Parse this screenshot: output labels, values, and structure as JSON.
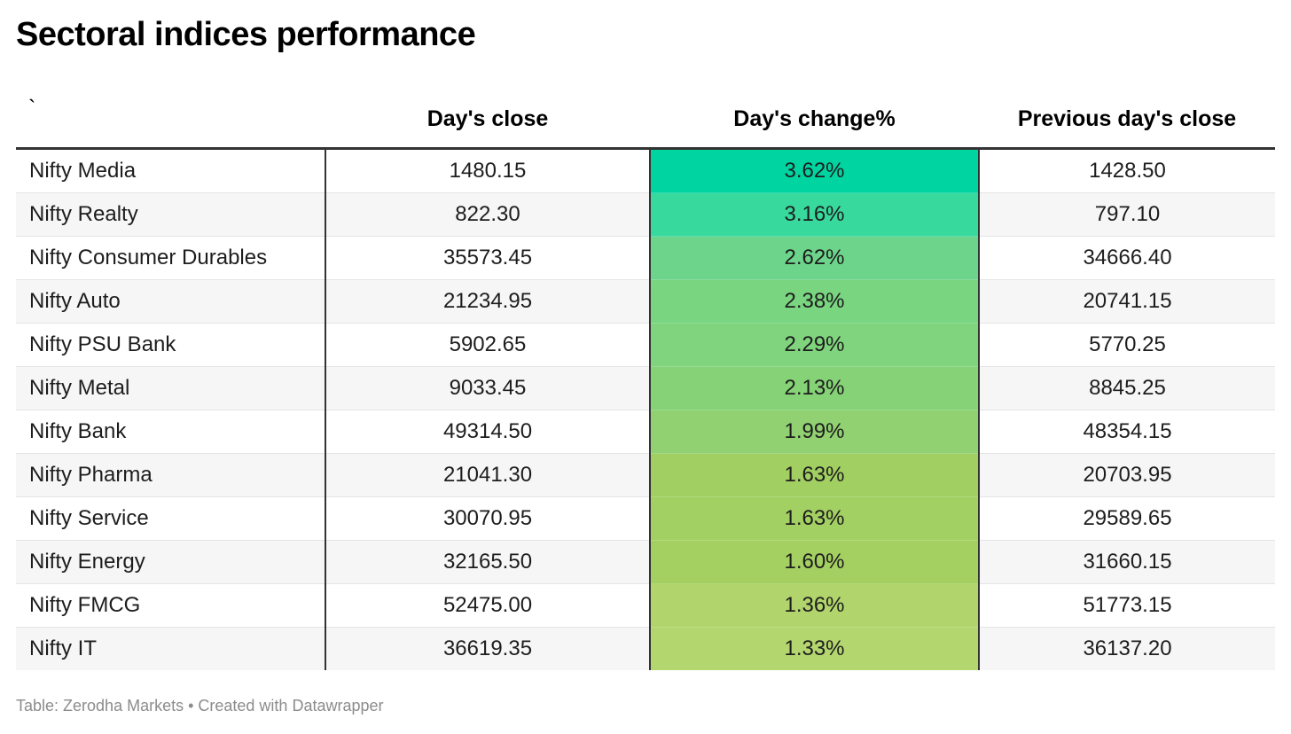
{
  "title": "Sectoral indices performance",
  "footer": "Table: Zerodha Markets • Created with Datawrapper",
  "chart_data": {
    "type": "table",
    "title": "Sectoral indices performance",
    "columns": [
      "`",
      "Day's close",
      "Day's change%",
      "Previous day's close"
    ],
    "rows": [
      {
        "name": "Nifty Media",
        "close": "1480.15",
        "change": "3.62%",
        "prev": "1428.50",
        "change_value": 3.62,
        "color": "#00d5a2"
      },
      {
        "name": "Nifty Realty",
        "close": "822.30",
        "change": "3.16%",
        "prev": "797.10",
        "change_value": 3.16,
        "color": "#38d99d"
      },
      {
        "name": "Nifty Consumer Durables",
        "close": "35573.45",
        "change": "2.62%",
        "prev": "34666.40",
        "change_value": 2.62,
        "color": "#6dd58b"
      },
      {
        "name": "Nifty Auto",
        "close": "21234.95",
        "change": "2.38%",
        "prev": "20741.15",
        "change_value": 2.38,
        "color": "#7ad581"
      },
      {
        "name": "Nifty PSU Bank",
        "close": "5902.65",
        "change": "2.29%",
        "prev": "5770.25",
        "change_value": 2.29,
        "color": "#7fd47d"
      },
      {
        "name": "Nifty Metal",
        "close": "9033.45",
        "change": "2.13%",
        "prev": "8845.25",
        "change_value": 2.13,
        "color": "#86d276"
      },
      {
        "name": "Nifty Bank",
        "close": "49314.50",
        "change": "1.99%",
        "prev": "48354.15",
        "change_value": 1.99,
        "color": "#91d171"
      },
      {
        "name": "Nifty Pharma",
        "close": "21041.30",
        "change": "1.63%",
        "prev": "20703.95",
        "change_value": 1.63,
        "color": "#a2cf62"
      },
      {
        "name": "Nifty Service",
        "close": "30070.95",
        "change": "1.63%",
        "prev": "29589.65",
        "change_value": 1.63,
        "color": "#a3d062"
      },
      {
        "name": "Nifty Energy",
        "close": "32165.50",
        "change": "1.60%",
        "prev": "31660.15",
        "change_value": 1.6,
        "color": "#a4cf61"
      },
      {
        "name": "Nifty FMCG",
        "close": "52475.00",
        "change": "1.36%",
        "prev": "51773.15",
        "change_value": 1.36,
        "color": "#b1d56c"
      },
      {
        "name": "Nifty IT",
        "close": "36619.35",
        "change": "1.33%",
        "prev": "36137.20",
        "change_value": 1.33,
        "color": "#b4d66f"
      }
    ]
  }
}
